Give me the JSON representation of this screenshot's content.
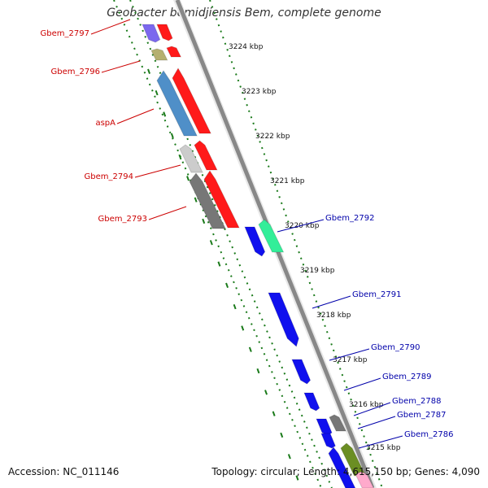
{
  "title": "Geobacter bemidjiensis Bem, complete genome",
  "footer": {
    "accession": "Accession: NC_011146",
    "summary": "Topology: circular; Length: 4,615,150 bp; Genes: 4,090"
  },
  "colors": {
    "forward_label": "#cc0000",
    "reverse_label": "#0000aa",
    "backbone": "#888888",
    "tick": "#1a7a1a"
  },
  "ruler_ticks": [
    {
      "label": "3224 kbp",
      "kbp": 3224
    },
    {
      "label": "3223 kbp",
      "kbp": 3223
    },
    {
      "label": "3222 kbp",
      "kbp": 3222
    },
    {
      "label": "3221 kbp",
      "kbp": 3221
    },
    {
      "label": "3220 kbp",
      "kbp": 3220
    },
    {
      "label": "3219 kbp",
      "kbp": 3219
    },
    {
      "label": "3218 kbp",
      "kbp": 3218
    },
    {
      "label": "3217 kbp",
      "kbp": 3217
    },
    {
      "label": "3216 kbp",
      "kbp": 3216
    },
    {
      "label": "3215 kbp",
      "kbp": 3215
    }
  ],
  "left_labels": [
    {
      "name": "Gbem_2797"
    },
    {
      "name": "Gbem_2796"
    },
    {
      "name": "aspA"
    },
    {
      "name": "Gbem_2794"
    },
    {
      "name": "Gbem_2793"
    }
  ],
  "right_labels": [
    {
      "name": "Gbem_2792"
    },
    {
      "name": "Gbem_2791"
    },
    {
      "name": "Gbem_2790"
    },
    {
      "name": "Gbem_2789"
    },
    {
      "name": "Gbem_2788"
    },
    {
      "name": "Gbem_2787"
    },
    {
      "name": "Gbem_2786"
    }
  ]
}
